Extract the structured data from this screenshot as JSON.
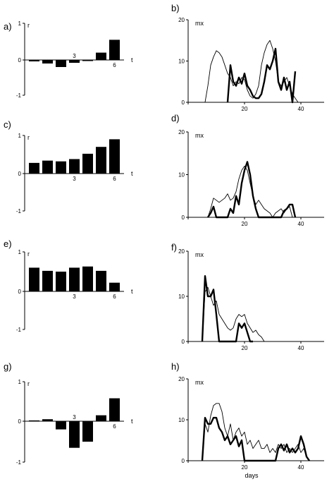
{
  "chart_data": [
    {
      "panel": "a)",
      "type": "bar",
      "ylabel": "r",
      "xlabel": "t",
      "ylim": [
        -1,
        1
      ],
      "yticks": [
        "1",
        "0",
        "-1"
      ],
      "categories": [
        1,
        2,
        3,
        4,
        5,
        6,
        7
      ],
      "xtick_labels": [
        {
          "at": 4,
          "label": "3"
        },
        {
          "at": 7,
          "label": "6"
        }
      ],
      "values": [
        -0.04,
        -0.1,
        -0.2,
        -0.08,
        -0.03,
        0.2,
        0.55
      ]
    },
    {
      "panel": "b)",
      "type": "line",
      "ylabel": "mx",
      "xlabel": "",
      "xlim": [
        0,
        45
      ],
      "ylim": [
        0,
        20
      ],
      "xticks": [
        0,
        20,
        40
      ],
      "yticks": [
        0,
        10,
        20
      ],
      "series": [
        {
          "style": "thin",
          "x": [
            6,
            7,
            8,
            9,
            10,
            11,
            12,
            13,
            14,
            15,
            16,
            17,
            18,
            19,
            20,
            21,
            22,
            23,
            24,
            25,
            26,
            27,
            28,
            29,
            30,
            31,
            32,
            33,
            34,
            35,
            36,
            37,
            38,
            39
          ],
          "y": [
            0,
            4,
            9,
            11,
            12.5,
            12,
            11,
            9,
            7,
            6,
            4,
            5,
            4.5,
            6,
            5.5,
            3,
            1.5,
            1,
            2,
            4,
            9,
            12,
            14,
            15,
            13,
            10,
            5,
            4,
            5,
            6,
            4,
            2,
            1,
            0
          ]
        },
        {
          "style": "thick",
          "x": [
            14,
            15,
            16,
            17,
            18,
            19,
            20,
            21,
            22,
            23,
            24,
            25,
            26,
            27,
            28,
            29,
            30,
            31,
            32,
            33,
            34,
            35,
            36,
            37,
            38
          ],
          "y": [
            0,
            9,
            5,
            4,
            6,
            4.5,
            7,
            4,
            3,
            1.5,
            1,
            1,
            2,
            5,
            9,
            8,
            10,
            13,
            5,
            3,
            6,
            3,
            5,
            0,
            7.5
          ]
        }
      ]
    },
    {
      "panel": "c)",
      "type": "bar",
      "ylabel": "r",
      "xlabel": "t",
      "ylim": [
        -1,
        1
      ],
      "yticks": [
        "1",
        "0",
        "-1"
      ],
      "categories": [
        1,
        2,
        3,
        4,
        5,
        6,
        7
      ],
      "xtick_labels": [
        {
          "at": 4,
          "label": "3"
        },
        {
          "at": 7,
          "label": "6"
        }
      ],
      "values": [
        0.28,
        0.34,
        0.32,
        0.38,
        0.52,
        0.7,
        0.9
      ]
    },
    {
      "panel": "d)",
      "type": "line",
      "ylabel": "mx",
      "xlabel": "",
      "xlim": [
        0,
        45
      ],
      "ylim": [
        0,
        20
      ],
      "xticks": [
        0,
        20,
        40
      ],
      "yticks": [
        0,
        10,
        20
      ],
      "series": [
        {
          "style": "thin",
          "x": [
            7,
            8,
            9,
            10,
            11,
            12,
            13,
            14,
            15,
            16,
            17,
            18,
            19,
            20,
            21,
            22,
            23,
            24,
            25,
            26,
            27,
            28,
            29,
            30,
            31,
            32,
            33,
            34,
            35,
            36,
            37
          ],
          "y": [
            0,
            2,
            4.5,
            4,
            3.5,
            4,
            4.5,
            5.5,
            4,
            4.5,
            6,
            9,
            11,
            12,
            11,
            8,
            5,
            3,
            4,
            3,
            2,
            1.5,
            1,
            0,
            1,
            1.5,
            2,
            1,
            2,
            2.5,
            0
          ]
        },
        {
          "style": "thick",
          "x": [
            7,
            8,
            9,
            10,
            11,
            12,
            13,
            14,
            15,
            16,
            17,
            18,
            19,
            20,
            21,
            22,
            23,
            24,
            25,
            26,
            27,
            28,
            29,
            30,
            31,
            32,
            33,
            34,
            35,
            36,
            37,
            38
          ],
          "y": [
            0,
            1,
            2.5,
            0,
            0,
            0,
            0,
            0,
            2,
            1,
            5,
            3,
            8,
            11,
            13,
            10,
            5,
            2,
            0,
            0,
            0,
            0,
            0,
            0,
            0,
            0,
            0,
            1.5,
            2,
            3,
            3,
            0
          ]
        }
      ]
    },
    {
      "panel": "e)",
      "type": "bar",
      "ylabel": "r",
      "xlabel": "t",
      "ylim": [
        -1,
        1
      ],
      "yticks": [
        "1",
        "0",
        "-1"
      ],
      "categories": [
        1,
        2,
        3,
        4,
        5,
        6,
        7
      ],
      "xtick_labels": [
        {
          "at": 4,
          "label": "3"
        },
        {
          "at": 7,
          "label": "6"
        }
      ],
      "values": [
        0.6,
        0.52,
        0.5,
        0.6,
        0.63,
        0.52,
        0.22
      ]
    },
    {
      "panel": "f)",
      "type": "line",
      "ylabel": "mx",
      "xlabel": "",
      "xlim": [
        0,
        45
      ],
      "ylim": [
        0,
        20
      ],
      "xticks": [
        0,
        20,
        40
      ],
      "yticks": [
        0,
        10,
        20
      ],
      "series": [
        {
          "style": "thin",
          "x": [
            5,
            6,
            7,
            8,
            9,
            10,
            11,
            12,
            13,
            14,
            15,
            16,
            17,
            18,
            19,
            20,
            21,
            22,
            23,
            24,
            25,
            26,
            27
          ],
          "y": [
            0,
            11,
            12,
            10,
            8,
            9,
            6,
            5,
            4,
            3,
            2.5,
            3,
            5,
            6,
            5.5,
            6,
            4,
            3,
            2,
            2.5,
            1.5,
            1,
            0
          ]
        },
        {
          "style": "thick",
          "x": [
            5,
            6,
            7,
            8,
            9,
            10,
            11,
            12,
            13,
            14,
            15,
            16,
            17,
            18,
            19,
            20,
            21,
            22,
            23
          ],
          "y": [
            0,
            14.5,
            10,
            10,
            11.5,
            6,
            0,
            0,
            0,
            0,
            0,
            0,
            0,
            4,
            3,
            4,
            2,
            0,
            0
          ]
        }
      ]
    },
    {
      "panel": "g)",
      "type": "bar",
      "ylabel": "r",
      "xlabel": "t",
      "ylim": [
        -1,
        1
      ],
      "yticks": [
        "1",
        "0",
        "-1"
      ],
      "categories": [
        1,
        2,
        3,
        4,
        5,
        6,
        7
      ],
      "xtick_labels": [
        {
          "at": 4,
          "label": "3"
        },
        {
          "at": 7,
          "label": "6"
        }
      ],
      "values": [
        0.02,
        0.05,
        -0.2,
        -0.65,
        -0.5,
        0.15,
        0.58
      ]
    },
    {
      "panel": "h)",
      "type": "line",
      "ylabel": "mx",
      "xlabel": "days",
      "xlim": [
        0,
        45
      ],
      "ylim": [
        0,
        20
      ],
      "xticks": [
        0,
        20,
        40
      ],
      "yticks": [
        0,
        10,
        20
      ],
      "series": [
        {
          "style": "thin",
          "x": [
            5,
            6,
            7,
            8,
            9,
            10,
            11,
            12,
            13,
            14,
            15,
            16,
            17,
            18,
            19,
            20,
            21,
            22,
            23,
            24,
            25,
            26,
            27,
            28,
            29,
            30,
            31,
            32,
            33,
            34,
            35,
            36,
            37,
            38,
            39,
            40,
            41,
            42,
            43
          ],
          "y": [
            0,
            9,
            7,
            11,
            13.5,
            14,
            14,
            12,
            8,
            6,
            9,
            5,
            7,
            8,
            6,
            7,
            4,
            5,
            3,
            4,
            5,
            3,
            3,
            4,
            2,
            3,
            2,
            4,
            3,
            4,
            2,
            3,
            2,
            3,
            4,
            2,
            3,
            1,
            0
          ]
        },
        {
          "style": "thick",
          "x": [
            5,
            6,
            7,
            8,
            9,
            10,
            11,
            12,
            13,
            14,
            15,
            16,
            17,
            18,
            19,
            20,
            21,
            22,
            23,
            24,
            25,
            26,
            27,
            28,
            29,
            30,
            31,
            32,
            33,
            34,
            35,
            36,
            37,
            38,
            39,
            40,
            41,
            42,
            43
          ],
          "y": [
            0,
            10.5,
            9,
            9,
            10.5,
            10.5,
            8,
            7,
            5,
            6,
            4,
            5,
            6,
            3.5,
            5,
            0,
            0,
            0,
            0,
            0,
            0,
            0,
            0,
            0,
            0,
            0,
            0,
            3,
            4,
            2.5,
            4,
            2,
            3,
            2,
            3,
            6,
            4,
            1,
            0
          ]
        }
      ]
    }
  ]
}
